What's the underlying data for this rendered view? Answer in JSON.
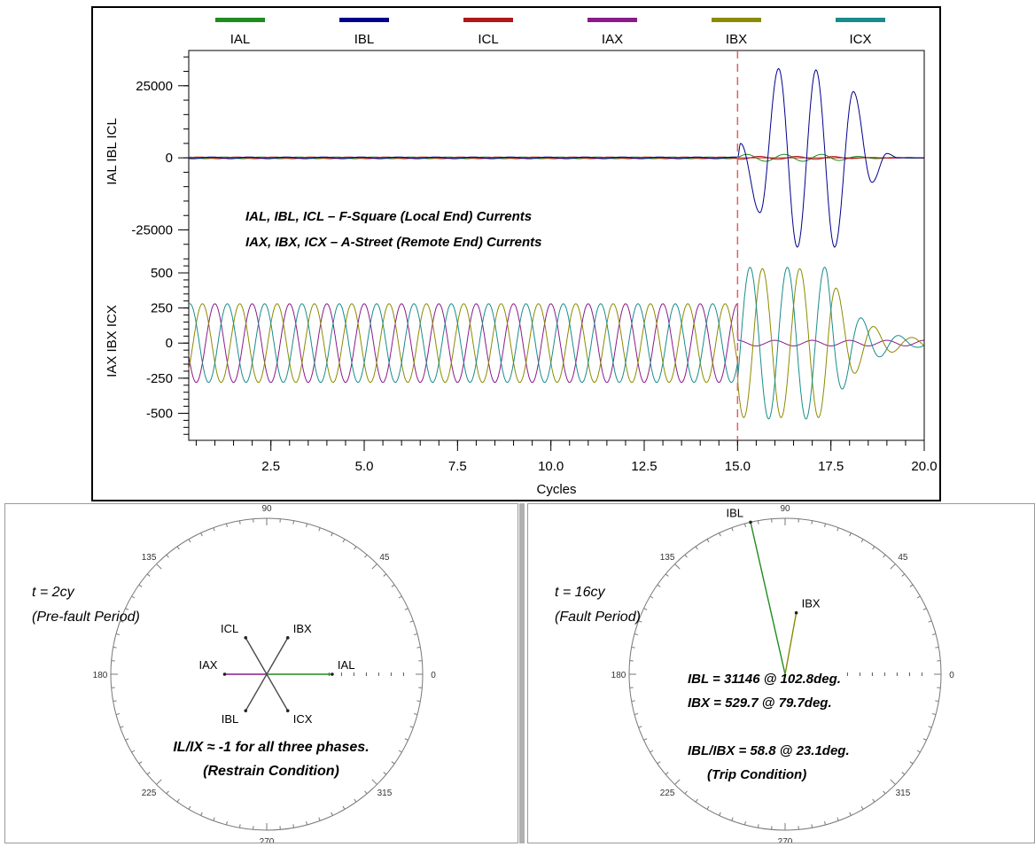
{
  "chart_data": [
    {
      "type": "line",
      "title": "",
      "xlabel": "Cycles",
      "xlim": [
        0.3,
        20.0
      ],
      "x_ticks": [
        "2.5",
        "5.0",
        "7.5",
        "10.0",
        "12.5",
        "15.0",
        "17.5",
        "20.0"
      ],
      "fault_marker_x": 15.0,
      "legend": [
        {
          "name": "IAL",
          "color": "#1f8c1f"
        },
        {
          "name": "IBL",
          "color": "#00008b"
        },
        {
          "name": "ICL",
          "color": "#b01818"
        },
        {
          "name": "IAX",
          "color": "#8b1a8b"
        },
        {
          "name": "IBX",
          "color": "#8b8b00"
        },
        {
          "name": "ICX",
          "color": "#1a8b8b"
        }
      ],
      "upper": {
        "ylabel": "IAL IBL ICL",
        "y_ticks": [
          "25000",
          "0",
          "-25000"
        ],
        "ylim": [
          -31000,
          36000
        ],
        "series": [
          {
            "name": "IAL",
            "color": "#1f8c1f",
            "prefault_amplitude": 300,
            "fault_amplitude": 1200
          },
          {
            "name": "IBL",
            "color": "#00008b",
            "prefault_amplitude": 300,
            "fault_peaks": [
              {
                "x": 15.08,
                "y": 5000
              },
              {
                "x": 15.6,
                "y": -19000
              },
              {
                "x": 16.1,
                "y": 31000
              },
              {
                "x": 16.6,
                "y": -31000
              },
              {
                "x": 17.1,
                "y": 30500
              },
              {
                "x": 17.6,
                "y": -31000
              },
              {
                "x": 18.1,
                "y": 23000
              },
              {
                "x": 18.6,
                "y": -8500
              },
              {
                "x": 19.0,
                "y": 1500
              },
              {
                "x": 19.3,
                "y": 0
              }
            ]
          },
          {
            "name": "ICL",
            "color": "#b01818",
            "prefault_amplitude": 300,
            "fault_amplitude": 500
          }
        ]
      },
      "lower": {
        "ylabel": "IAX IBX ICX",
        "y_ticks": [
          "500",
          "250",
          "0",
          "-250",
          "-500"
        ],
        "ylim": [
          -680,
          620
        ],
        "series": [
          {
            "name": "IAX",
            "color": "#8b1a8b",
            "prefault_amplitude": 280,
            "fault_amplitude": 20
          },
          {
            "name": "IBX",
            "color": "#8b8b00",
            "prefault_amplitude": 280,
            "fault_amplitude": 530
          },
          {
            "name": "ICX",
            "color": "#1a8b8b",
            "prefault_amplitude": 280,
            "fault_amplitude": 540
          }
        ]
      },
      "annotations": [
        "IAL, IBL, ICL – F-Square (Local End) Currents",
        "IAX, IBX, ICX – A-Street (Remote End) Currents"
      ]
    },
    {
      "type": "polar",
      "angle_labels": [
        "90",
        "45",
        "0",
        "315",
        "270",
        "225",
        "180",
        "135"
      ],
      "time_label": "t = 2cy",
      "period_label": "(Pre-fault Period)",
      "phasors": [
        {
          "name": "IAL",
          "magnitude": 0.42,
          "angle_deg": 0,
          "color": "#1f8c1f"
        },
        {
          "name": "IBL",
          "magnitude": 0.27,
          "angle_deg": 240,
          "color": "#4a4a4a"
        },
        {
          "name": "ICL",
          "magnitude": 0.27,
          "angle_deg": 120,
          "color": "#4a4a4a"
        },
        {
          "name": "IAX",
          "magnitude": 0.27,
          "angle_deg": 180,
          "color": "#8b1a8b"
        },
        {
          "name": "IBX",
          "magnitude": 0.27,
          "angle_deg": 60,
          "color": "#4a4a4a"
        },
        {
          "name": "ICX",
          "magnitude": 0.27,
          "angle_deg": 300,
          "color": "#4a4a4a"
        }
      ],
      "note_line1": "IL/IX ≈ -1 for all three phases.",
      "note_line2": "(Restrain Condition)"
    },
    {
      "type": "polar",
      "angle_labels": [
        "90",
        "45",
        "0",
        "315",
        "270",
        "225",
        "180",
        "135"
      ],
      "time_label": "t = 16cy",
      "period_label": "(Fault Period)",
      "phasors": [
        {
          "name": "IBL",
          "magnitude": 1.0,
          "angle_deg": 102.8,
          "color": "#1f8c1f"
        },
        {
          "name": "IBX",
          "magnitude": 0.4,
          "angle_deg": 79.7,
          "color": "#8b8b00"
        }
      ],
      "note_line1": "IBL = 31146 @ 102.8deg.",
      "note_line2": "IBX = 529.7 @ 79.7deg.",
      "note_line3": "IBL/IBX = 58.8 @ 23.1deg.",
      "note_line4": "(Trip Condition)"
    }
  ]
}
